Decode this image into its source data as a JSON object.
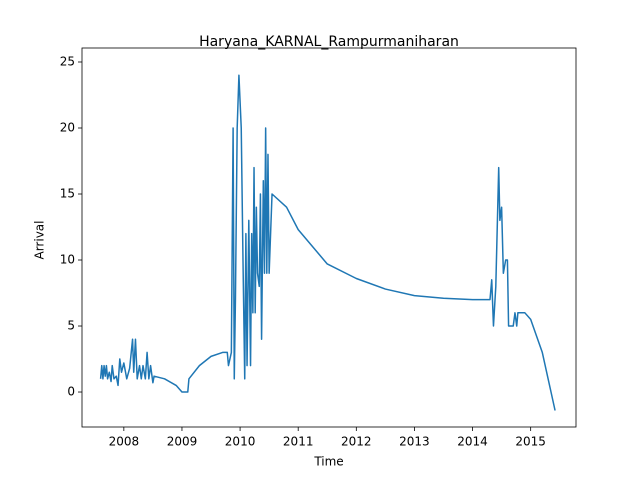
{
  "chart_data": {
    "type": "line",
    "title": "Haryana_KARNAL_Rampurmaniharan",
    "x_label": "Time",
    "y_label": "Arrival",
    "x": [
      2007.6,
      2007.62,
      2007.64,
      2007.66,
      2007.68,
      2007.7,
      2007.72,
      2007.75,
      2007.78,
      2007.8,
      2007.83,
      2007.87,
      2007.9,
      2007.93,
      2007.96,
      2008.0,
      2008.05,
      2008.1,
      2008.15,
      2008.17,
      2008.2,
      2008.23,
      2008.27,
      2008.3,
      2008.33,
      2008.37,
      2008.4,
      2008.43,
      2008.46,
      2008.5,
      2008.52,
      2008.7,
      2008.9,
      2009.0,
      2009.1,
      2009.12,
      2009.3,
      2009.5,
      2009.7,
      2009.78,
      2009.8,
      2009.85,
      2009.88,
      2009.9,
      2009.92,
      2009.95,
      2009.98,
      2010.02,
      2010.05,
      2010.08,
      2010.1,
      2010.12,
      2010.15,
      2010.18,
      2010.2,
      2010.22,
      2010.24,
      2010.26,
      2010.28,
      2010.3,
      2010.33,
      2010.35,
      2010.37,
      2010.4,
      2010.42,
      2010.44,
      2010.46,
      2010.48,
      2010.5,
      2010.55,
      2010.8,
      2011.0,
      2011.5,
      2012.0,
      2012.5,
      2013.0,
      2013.5,
      2014.0,
      2014.3,
      2014.33,
      2014.36,
      2014.4,
      2014.45,
      2014.47,
      2014.5,
      2014.53,
      2014.57,
      2014.6,
      2014.62,
      2014.7,
      2014.73,
      2014.76,
      2014.78,
      2014.9,
      2015.0,
      2015.2,
      2015.35,
      2015.42
    ],
    "series": [
      {
        "color": "#1f77b4",
        "values": [
          1,
          2,
          1,
          2,
          1.2,
          2,
          1,
          1.5,
          0.8,
          2,
          1,
          1.2,
          0.5,
          2.5,
          1.5,
          2.2,
          1,
          1.8,
          4,
          1.5,
          4,
          1,
          2,
          1,
          2,
          1,
          3,
          1,
          2,
          0.7,
          1.2,
          1,
          0.5,
          0,
          0,
          1,
          2,
          2.7,
          3,
          3,
          2,
          3,
          20,
          1,
          7,
          20,
          24,
          20,
          10,
          1,
          12,
          2,
          13,
          2,
          12,
          6,
          17,
          6,
          14,
          9,
          8,
          15,
          4,
          16,
          9,
          20,
          9,
          18,
          9,
          15,
          14,
          12.3,
          9.7,
          8.6,
          7.8,
          7.3,
          7.1,
          7,
          7,
          8.5,
          5,
          8,
          17,
          13,
          14,
          9,
          10,
          10,
          5,
          5,
          6,
          5,
          6,
          6,
          5.5,
          3,
          0,
          -1.4
        ]
      }
    ],
    "xlim": [
      2007.28,
      2015.78
    ],
    "ylim": [
      -2.65,
      26.06
    ],
    "xticks": [
      2008,
      2009,
      2010,
      2011,
      2012,
      2013,
      2014,
      2015
    ],
    "yticks": [
      0,
      5,
      10,
      15,
      20,
      25
    ]
  }
}
